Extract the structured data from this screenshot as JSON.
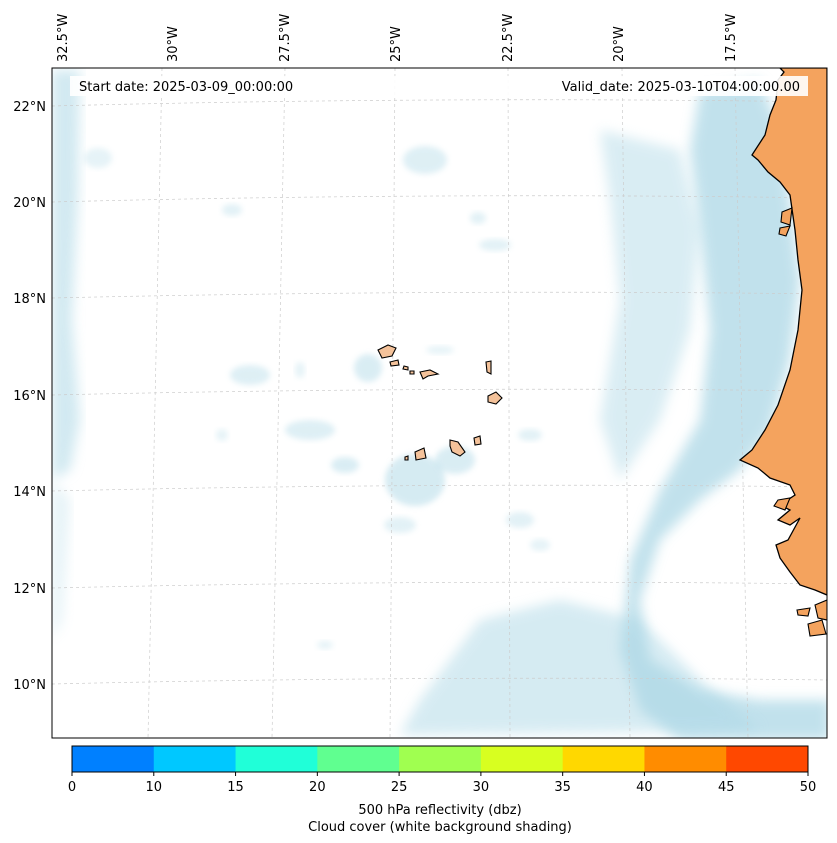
{
  "map": {
    "start_date_label": "Start date: 2025-03-09_00:00:00",
    "valid_date_label": "Valid_date: 2025-03-10T04:00:00.00",
    "lon_labels": [
      "32.5°W",
      "30°W",
      "27.5°W",
      "25°W",
      "22.5°W",
      "20°W",
      "17.5°W"
    ],
    "lat_labels": [
      "22°N",
      "20°N",
      "18°N",
      "16°N",
      "14°N",
      "12°N",
      "10°N"
    ],
    "land_color": "#f4a35e",
    "cloud_color": "#add8e6",
    "grid": true
  },
  "colorbar": {
    "bounds": [
      0,
      10,
      15,
      20,
      25,
      30,
      35,
      40,
      45,
      50
    ],
    "tick_labels": [
      "0",
      "10",
      "15",
      "20",
      "25",
      "30",
      "35",
      "40",
      "45",
      "50"
    ],
    "colors": [
      "#0080ff",
      "#00c8ff",
      "#20ffd8",
      "#60ff90",
      "#a0ff50",
      "#d8ff20",
      "#ffd800",
      "#ff8c00",
      "#ff4800"
    ],
    "label_line1": "500 hPa reflectivity (dbz)",
    "label_line2": "Cloud cover (white background shading)"
  }
}
